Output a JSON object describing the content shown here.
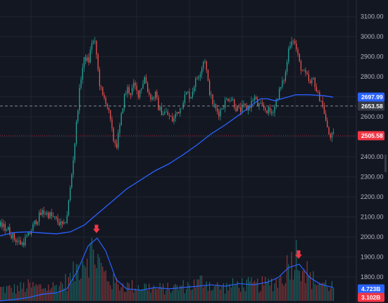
{
  "chart_data": {
    "type": "candlestick",
    "price_axis": {
      "ticks": [
        1800,
        1900,
        2000,
        2100,
        2200,
        2300,
        2400,
        2500,
        2600,
        2700,
        2800,
        2900,
        3000,
        3100
      ],
      "tick_labels": [
        "1800.00",
        "1900.00",
        "2000.00",
        "2100.00",
        "2200.00",
        "2300.00",
        "2400.00",
        "2500.00",
        "2600.00",
        "2700.00",
        "2800.00",
        "2900.00",
        "3000.00",
        "3100.00"
      ],
      "range": [
        1740,
        3120
      ]
    },
    "price_tags": {
      "moving_average": {
        "value": 2697.99,
        "label": "2697.99",
        "color": "#2962ff"
      },
      "crosshair": {
        "value": 2653.58,
        "label": "2653.58",
        "color": "#363a45"
      },
      "last_price": {
        "value": 2505.58,
        "label": "2505.58",
        "color": "#f23645"
      }
    },
    "volume_tags": {
      "volume_ma": {
        "label": "4.723B",
        "color": "#2962ff"
      },
      "volume": {
        "label": "3.102B",
        "color": "#f23645"
      }
    },
    "price_keypoints": [
      [
        0,
        2055
      ],
      [
        10,
        2040
      ],
      [
        20,
        1990
      ],
      [
        30,
        1965
      ],
      [
        40,
        2005
      ],
      [
        50,
        2080
      ],
      [
        60,
        2125
      ],
      [
        70,
        2110
      ],
      [
        80,
        2080
      ],
      [
        90,
        2050
      ],
      [
        95,
        2120
      ],
      [
        100,
        2270
      ],
      [
        105,
        2450
      ],
      [
        110,
        2650
      ],
      [
        115,
        2820
      ],
      [
        120,
        2900
      ],
      [
        125,
        2870
      ],
      [
        130,
        2980
      ],
      [
        135,
        2960
      ],
      [
        140,
        2780
      ],
      [
        145,
        2700
      ],
      [
        150,
        2680
      ],
      [
        155,
        2600
      ],
      [
        160,
        2490
      ],
      [
        165,
        2460
      ],
      [
        170,
        2560
      ],
      [
        175,
        2690
      ],
      [
        180,
        2740
      ],
      [
        185,
        2720
      ],
      [
        190,
        2760
      ],
      [
        195,
        2710
      ],
      [
        200,
        2750
      ],
      [
        205,
        2800
      ],
      [
        210,
        2720
      ],
      [
        215,
        2690
      ],
      [
        220,
        2710
      ],
      [
        225,
        2640
      ],
      [
        230,
        2620
      ],
      [
        235,
        2620
      ],
      [
        240,
        2600
      ],
      [
        245,
        2580
      ],
      [
        250,
        2620
      ],
      [
        255,
        2640
      ],
      [
        260,
        2690
      ],
      [
        265,
        2720
      ],
      [
        270,
        2700
      ],
      [
        275,
        2760
      ],
      [
        280,
        2800
      ],
      [
        285,
        2840
      ],
      [
        290,
        2900
      ],
      [
        295,
        2760
      ],
      [
        300,
        2680
      ],
      [
        305,
        2640
      ],
      [
        310,
        2620
      ],
      [
        315,
        2650
      ],
      [
        320,
        2680
      ],
      [
        325,
        2700
      ],
      [
        330,
        2680
      ],
      [
        335,
        2640
      ],
      [
        340,
        2630
      ],
      [
        345,
        2650
      ],
      [
        350,
        2640
      ],
      [
        355,
        2660
      ],
      [
        360,
        2700
      ],
      [
        365,
        2660
      ],
      [
        370,
        2650
      ],
      [
        375,
        2640
      ],
      [
        380,
        2630
      ],
      [
        385,
        2620
      ],
      [
        390,
        2660
      ],
      [
        395,
        2720
      ],
      [
        400,
        2760
      ],
      [
        405,
        2820
      ],
      [
        410,
        2960
      ],
      [
        415,
        3000
      ],
      [
        420,
        2940
      ],
      [
        425,
        2860
      ],
      [
        430,
        2820
      ],
      [
        435,
        2800
      ],
      [
        440,
        2760
      ],
      [
        445,
        2790
      ],
      [
        450,
        2710
      ],
      [
        455,
        2690
      ],
      [
        460,
        2620
      ],
      [
        465,
        2520
      ],
      [
        470,
        2500
      ],
      [
        473,
        2505
      ]
    ],
    "moving_average_points": [
      [
        0,
        2005
      ],
      [
        20,
        2022
      ],
      [
        40,
        2025
      ],
      [
        60,
        2020
      ],
      [
        80,
        2015
      ],
      [
        100,
        2025
      ],
      [
        120,
        2060
      ],
      [
        140,
        2120
      ],
      [
        160,
        2180
      ],
      [
        180,
        2240
      ],
      [
        200,
        2285
      ],
      [
        220,
        2330
      ],
      [
        240,
        2365
      ],
      [
        260,
        2410
      ],
      [
        280,
        2460
      ],
      [
        300,
        2515
      ],
      [
        320,
        2560
      ],
      [
        340,
        2610
      ],
      [
        360,
        2665
      ],
      [
        370,
        2690
      ],
      [
        380,
        2690
      ],
      [
        390,
        2680
      ],
      [
        400,
        2690
      ],
      [
        420,
        2710
      ],
      [
        440,
        2710
      ],
      [
        460,
        2705
      ],
      [
        473,
        2698
      ]
    ],
    "volume_keypoints": [
      [
        0,
        0.25
      ],
      [
        20,
        0.25
      ],
      [
        40,
        0.3
      ],
      [
        60,
        0.28
      ],
      [
        80,
        0.3
      ],
      [
        100,
        0.45
      ],
      [
        110,
        0.7
      ],
      [
        120,
        0.95
      ],
      [
        130,
        1.0
      ],
      [
        137,
        0.9
      ],
      [
        145,
        0.6
      ],
      [
        160,
        0.38
      ],
      [
        180,
        0.3
      ],
      [
        200,
        0.3
      ],
      [
        220,
        0.26
      ],
      [
        240,
        0.25
      ],
      [
        260,
        0.3
      ],
      [
        280,
        0.35
      ],
      [
        290,
        0.45
      ],
      [
        300,
        0.3
      ],
      [
        320,
        0.28
      ],
      [
        340,
        0.35
      ],
      [
        360,
        0.32
      ],
      [
        380,
        0.35
      ],
      [
        400,
        0.45
      ],
      [
        410,
        0.8
      ],
      [
        420,
        0.95
      ],
      [
        430,
        0.75
      ],
      [
        440,
        0.45
      ],
      [
        460,
        0.35
      ],
      [
        473,
        0.3
      ]
    ],
    "volume_ma_points": [
      [
        0,
        0.0
      ],
      [
        20,
        0.02
      ],
      [
        40,
        0.05
      ],
      [
        60,
        0.1
      ],
      [
        80,
        0.12
      ],
      [
        95,
        0.18
      ],
      [
        110,
        0.45
      ],
      [
        125,
        0.82
      ],
      [
        138,
        0.94
      ],
      [
        150,
        0.75
      ],
      [
        165,
        0.32
      ],
      [
        180,
        0.18
      ],
      [
        200,
        0.16
      ],
      [
        220,
        0.2
      ],
      [
        240,
        0.18
      ],
      [
        260,
        0.2
      ],
      [
        280,
        0.22
      ],
      [
        300,
        0.24
      ],
      [
        320,
        0.22
      ],
      [
        340,
        0.26
      ],
      [
        360,
        0.24
      ],
      [
        380,
        0.28
      ],
      [
        395,
        0.35
      ],
      [
        410,
        0.5
      ],
      [
        425,
        0.55
      ],
      [
        440,
        0.35
      ],
      [
        455,
        0.25
      ],
      [
        473,
        0.2
      ]
    ],
    "arrows": [
      {
        "x": 137,
        "color": "#f23645"
      },
      {
        "x": 424,
        "color": "#f23645"
      }
    ],
    "colors": {
      "background": "#131722",
      "grid": "#1f2430",
      "up": "#26a69a",
      "down": "#ef5350",
      "moving_average": "#2962ff",
      "volume_up": "#26a69a",
      "volume_down": "#ef5350"
    },
    "grid": true
  }
}
